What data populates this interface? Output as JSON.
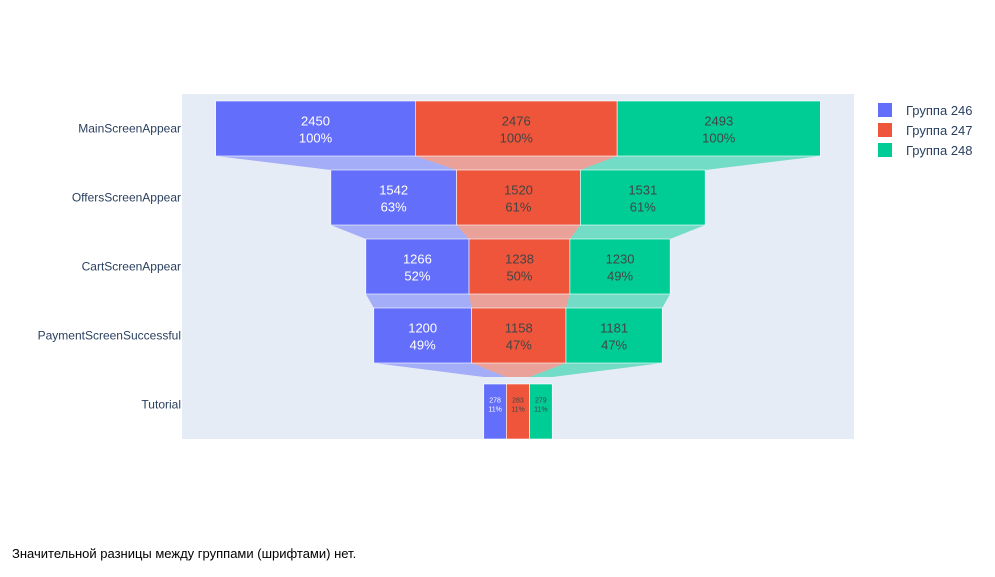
{
  "chart_data": {
    "type": "funnel",
    "categories": [
      "MainScreenAppear",
      "OffersScreenAppear",
      "CartScreenAppear",
      "PaymentScreenSuccessful",
      "Tutorial"
    ],
    "series": [
      {
        "name": "Группа 246",
        "color": "#636efa",
        "values": [
          2450,
          1542,
          1266,
          1200,
          278
        ],
        "percent": [
          "100%",
          "63%",
          "52%",
          "49%",
          "11%"
        ],
        "label_color": "#ffffff"
      },
      {
        "name": "Группа 247",
        "color": "#ef553b",
        "values": [
          2476,
          1520,
          1238,
          1158,
          283
        ],
        "percent": [
          "100%",
          "61%",
          "50%",
          "47%",
          "11%"
        ],
        "label_color": "#444444"
      },
      {
        "name": "Группа 248",
        "color": "#00cc96",
        "values": [
          2493,
          1531,
          1230,
          1181,
          279
        ],
        "percent": [
          "100%",
          "61%",
          "49%",
          "47%",
          "11%"
        ],
        "label_color": "#444444"
      }
    ],
    "legend_position": "top-right",
    "plot_background": "#e5ecf6"
  },
  "caption": "Значительной разницы между группами (шрифтами) нет."
}
